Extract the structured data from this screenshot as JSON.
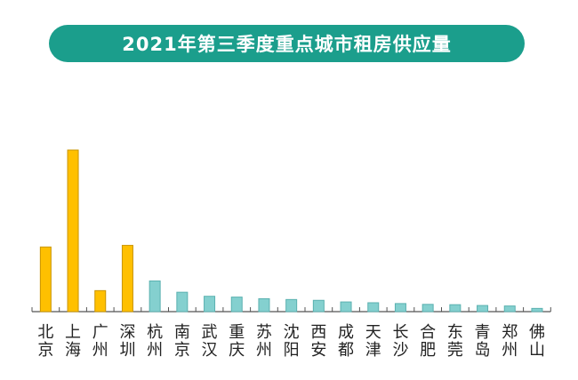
{
  "chart_data": {
    "type": "bar",
    "title": "2021年第三季度重点城市租房供应量",
    "xlabel": "",
    "ylabel": "",
    "categories": [
      "北京",
      "上海",
      "广州",
      "深圳",
      "杭州",
      "南京",
      "武汉",
      "重庆",
      "苏州",
      "沈阳",
      "西安",
      "成都",
      "天津",
      "长沙",
      "合肥",
      "东莞",
      "青岛",
      "郑州",
      "佛山"
    ],
    "values": [
      40,
      100,
      13,
      41,
      19,
      12,
      9.5,
      9,
      8,
      7.5,
      7,
      6,
      5.5,
      5,
      4.5,
      4.3,
      3.8,
      3.5,
      2
    ],
    "highlight": [
      true,
      true,
      true,
      true,
      false,
      false,
      false,
      false,
      false,
      false,
      false,
      false,
      false,
      false,
      false,
      false,
      false,
      false,
      false
    ],
    "ylim": [
      0,
      100
    ],
    "grid": false,
    "legend": "none",
    "colors": {
      "highlight_fill": "#ffc000",
      "highlight_stroke": "#c99400",
      "normal_fill": "#84d0cf",
      "normal_stroke": "#5bb1b0",
      "axis": "#555555",
      "title_bg": "#1b9e8c"
    }
  }
}
